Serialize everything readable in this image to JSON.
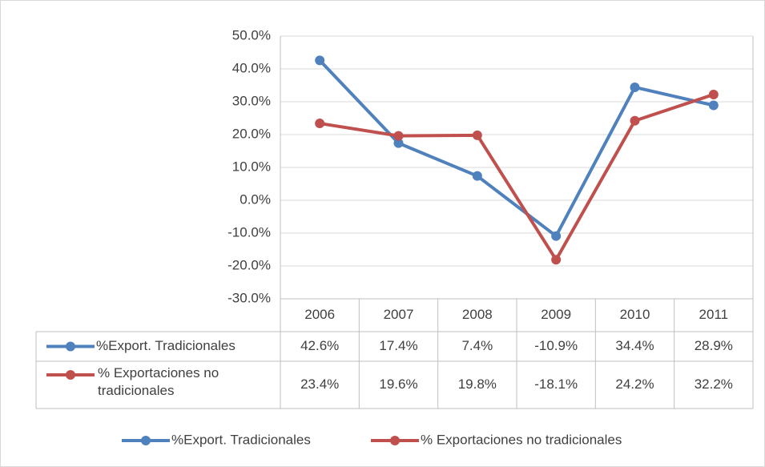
{
  "chart_data": {
    "type": "line",
    "categories": [
      "2006",
      "2007",
      "2008",
      "2009",
      "2010",
      "2011"
    ],
    "series": [
      {
        "name": "%Export. Tradicionales",
        "color": "#4f81bd",
        "values": [
          42.6,
          17.4,
          7.4,
          -10.9,
          34.4,
          28.9
        ],
        "value_labels": [
          "42.6%",
          "17.4%",
          "7.4%",
          "-10.9%",
          "34.4%",
          "28.9%"
        ]
      },
      {
        "name": "% Exportaciones no tradicionales",
        "color": "#c0504d",
        "values": [
          23.4,
          19.6,
          19.8,
          -18.1,
          24.2,
          32.2
        ],
        "value_labels": [
          "23.4%",
          "19.6%",
          "19.8%",
          "-18.1%",
          "24.2%",
          "32.2%"
        ]
      }
    ],
    "ylim": [
      -30,
      50
    ],
    "yticks": [
      {
        "value": -30,
        "label": "-30.0%"
      },
      {
        "value": -20,
        "label": "-20.0%"
      },
      {
        "value": -10,
        "label": "-10.0%"
      },
      {
        "value": 0,
        "label": "0.0%"
      },
      {
        "value": 10,
        "label": "10.0%"
      },
      {
        "value": 20,
        "label": "20.0%"
      },
      {
        "value": 30,
        "label": "30.0%"
      },
      {
        "value": 40,
        "label": "40.0%"
      },
      {
        "value": 50,
        "label": "50.0%"
      }
    ],
    "grid": true,
    "legend": "bottom",
    "data_table": true
  }
}
